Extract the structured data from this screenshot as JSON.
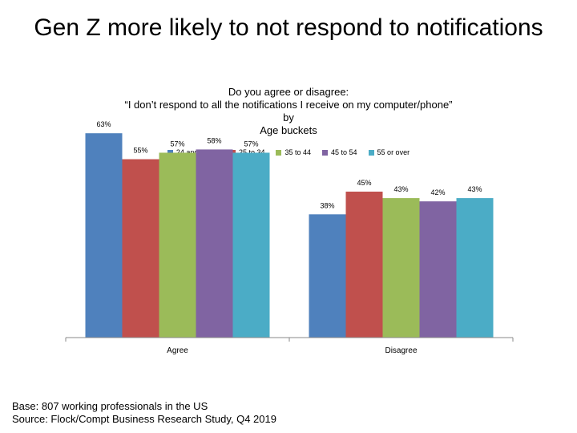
{
  "slide_title": "Gen Z more likely to not respond to notifications",
  "footer": {
    "base": "Base: 807 working professionals in the US",
    "source": "Source: Flock/Compt Business Research Study, Q4 2019"
  },
  "chart_data": {
    "type": "bar",
    "title_lines": [
      "Do you agree or disagree:",
      "“I don’t respond to all the notifications I receive on my computer/phone”",
      "by",
      "Age buckets"
    ],
    "categories": [
      "Agree",
      "Disagree"
    ],
    "series": [
      {
        "name": "24 and under",
        "values": [
          63,
          38
        ],
        "labels": [
          "63%",
          "38%"
        ],
        "color": "#4F81BD"
      },
      {
        "name": "25 to 34",
        "values": [
          55,
          45
        ],
        "labels": [
          "55%",
          "45%"
        ],
        "color": "#C0504D"
      },
      {
        "name": "35 to 44",
        "values": [
          57,
          43
        ],
        "labels": [
          "57%",
          "43%"
        ],
        "color": "#9BBB59"
      },
      {
        "name": "45 to 54",
        "values": [
          58,
          42
        ],
        "labels": [
          "58%",
          "42%"
        ],
        "color": "#8064A2"
      },
      {
        "name": "55 or over",
        "values": [
          57,
          43
        ],
        "labels": [
          "57%",
          "43%"
        ],
        "color": "#4BACC6"
      }
    ],
    "ylim": [
      0,
      67
    ],
    "legend_position": "top",
    "grid": false
  }
}
